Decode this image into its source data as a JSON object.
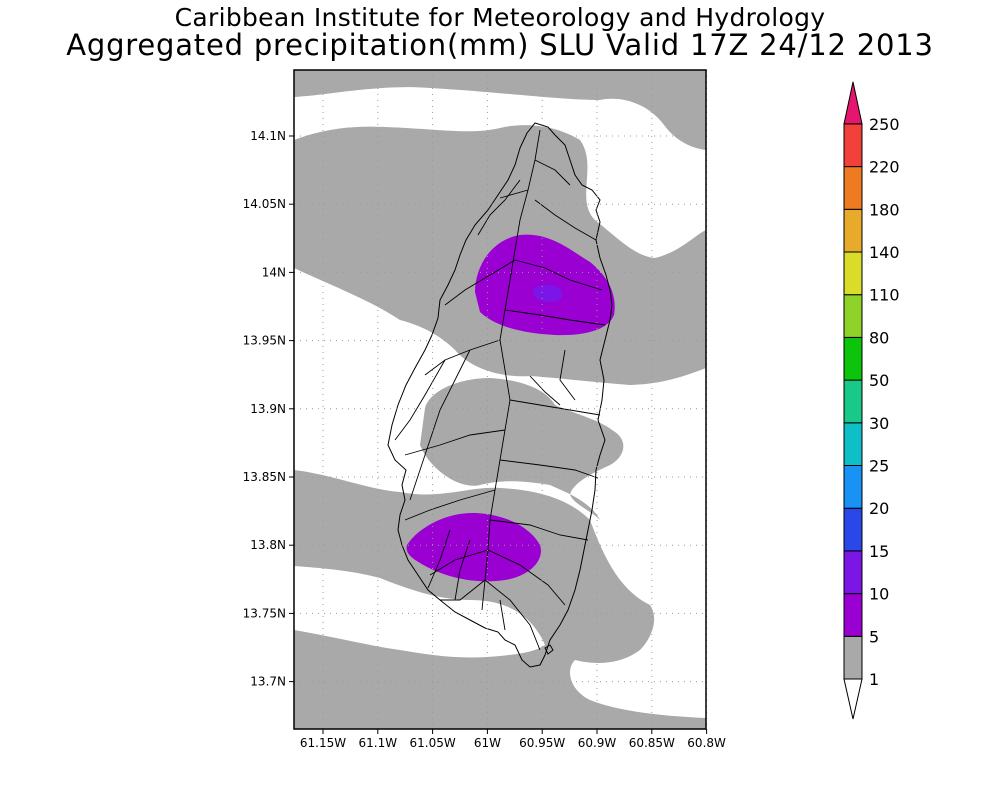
{
  "header": {
    "line1": "Caribbean Institute for Meteorology and Hydrology",
    "line2": "Aggregated precipitation(mm) SLU Valid 17Z 24/12 2013"
  },
  "map": {
    "region": "Saint Lucia",
    "lat_ticks": [
      "14.1N",
      "14.05N",
      "14N",
      "13.95N",
      "13.9N",
      "13.85N",
      "13.8N",
      "13.75N",
      "13.7N"
    ],
    "lon_ticks": [
      "61.15W",
      "61.1W",
      "61.05W",
      "61W",
      "60.95W",
      "60.9W",
      "60.85W",
      "60.8W"
    ],
    "gridlines": true,
    "features": [
      {
        "kind": "precip-band",
        "range_mm": "1-5",
        "color": "#a9a9a9"
      },
      {
        "kind": "precip-cell",
        "range_mm": "5-10",
        "color": "#9a00d2",
        "near": "north-central"
      },
      {
        "kind": "precip-cell",
        "range_mm": "10-15",
        "color": "#7b16e6",
        "near": "north-central core"
      },
      {
        "kind": "precip-cell",
        "range_mm": "5-10",
        "color": "#9a00d2",
        "near": "south-west"
      }
    ]
  },
  "legend": {
    "levels": [
      "1",
      "5",
      "10",
      "15",
      "20",
      "25",
      "30",
      "50",
      "80",
      "110",
      "140",
      "180",
      "220",
      "250"
    ],
    "colors": [
      "#a9a9a9",
      "#9a00d2",
      "#7b16e6",
      "#2a48e8",
      "#1992f5",
      "#0fbfc8",
      "#19c98a",
      "#0bc40b",
      "#8ed22a",
      "#d9dc28",
      "#e8aa2a",
      "#ee7a22",
      "#f2403a",
      "#e6166e"
    ],
    "under_color": "#ffffff",
    "top_color": "#e6166e"
  }
}
